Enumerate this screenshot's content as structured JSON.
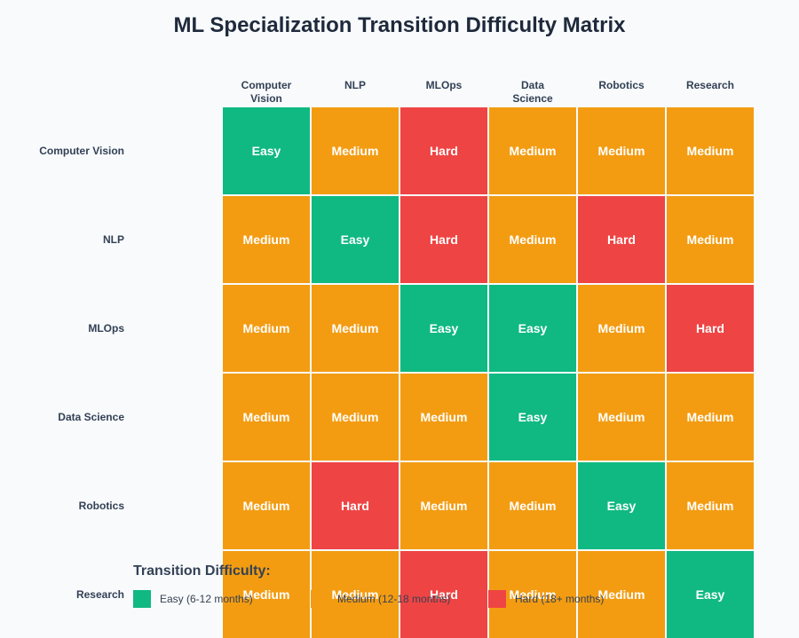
{
  "chart_data": {
    "type": "heatmap",
    "title": "ML Specialization Transition Difficulty Matrix",
    "columns": [
      "Computer\nVision",
      "NLP",
      "MLOps",
      "Data\nScience",
      "Robotics",
      "Research"
    ],
    "rows": [
      "Computer Vision",
      "NLP",
      "MLOps",
      "Data Science",
      "Robotics",
      "Research"
    ],
    "values": [
      [
        "Easy",
        "Medium",
        "Hard",
        "Medium",
        "Medium",
        "Medium"
      ],
      [
        "Medium",
        "Easy",
        "Hard",
        "Medium",
        "Hard",
        "Medium"
      ],
      [
        "Medium",
        "Medium",
        "Easy",
        "Easy",
        "Medium",
        "Hard"
      ],
      [
        "Medium",
        "Medium",
        "Medium",
        "Easy",
        "Medium",
        "Medium"
      ],
      [
        "Medium",
        "Hard",
        "Medium",
        "Medium",
        "Easy",
        "Medium"
      ],
      [
        "Medium",
        "Medium",
        "Hard",
        "Medium",
        "Medium",
        "Easy"
      ]
    ],
    "colors": {
      "Easy": "#10b981",
      "Medium": "#f39c12",
      "Hard": "#ef4444"
    },
    "legend": {
      "title": "Transition Difficulty:",
      "items": [
        {
          "level": "Easy",
          "label": "Easy (6-12 months)"
        },
        {
          "level": "Medium",
          "label": "Medium (12-18 months)"
        },
        {
          "level": "Hard",
          "label": "Hard (18+ months)"
        }
      ],
      "placement": "bottom-left"
    }
  }
}
